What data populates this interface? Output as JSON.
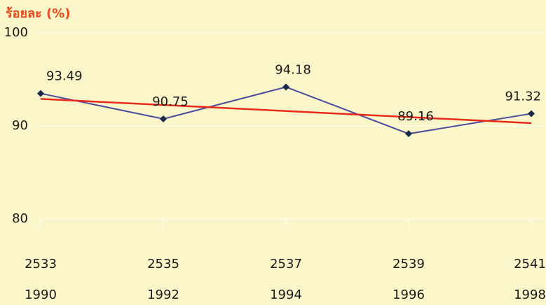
{
  "chart_data": {
    "type": "line",
    "title": "ร้อยละ (%)",
    "categories": [
      "2533",
      "2535",
      "2537",
      "2539",
      "2541"
    ],
    "secondary_categories": [
      "1990",
      "1992",
      "1994",
      "1996",
      "1998"
    ],
    "series": [
      {
        "name": "ร้อยละ",
        "color": "#4b4b9c",
        "marker_color": "#1c2a4a",
        "values": [
          93.49,
          90.75,
          94.18,
          89.16,
          91.32
        ]
      }
    ],
    "trend": {
      "color": "#e8291c",
      "start": 92.9,
      "end": 90.3
    },
    "ylim": [
      80,
      100
    ],
    "yticks": [
      80,
      90,
      100
    ],
    "grid": true
  }
}
